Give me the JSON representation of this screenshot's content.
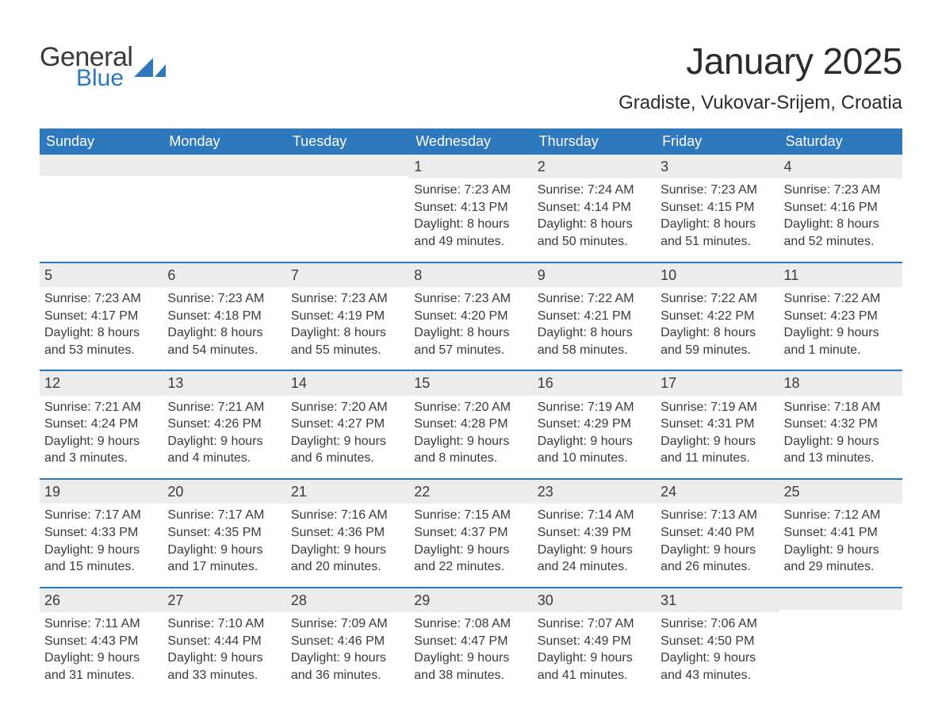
{
  "logo": {
    "word1": "General",
    "word2": "Blue"
  },
  "title": "January 2025",
  "location": "Gradiste, Vukovar-Srijem, Croatia",
  "colors": {
    "header_bg": "#2e78bd",
    "header_text": "#ffffff",
    "daynum_bg": "#ececec",
    "text": "#3a3a3a",
    "page_bg": "#ffffff",
    "logo_accent": "#2e78bd"
  },
  "typography": {
    "title_fontsize": 46,
    "location_fontsize": 24,
    "dayheader_fontsize": 18,
    "daynum_fontsize": 18,
    "body_fontsize": 16
  },
  "layout": {
    "columns": 7,
    "rows": 5,
    "week_border_color": "#2e78bd",
    "week_border_width": 2
  },
  "day_names": [
    "Sunday",
    "Monday",
    "Tuesday",
    "Wednesday",
    "Thursday",
    "Friday",
    "Saturday"
  ],
  "weeks": [
    [
      {
        "empty": true
      },
      {
        "empty": true
      },
      {
        "empty": true
      },
      {
        "num": "1",
        "sunrise": "Sunrise: 7:23 AM",
        "sunset": "Sunset: 4:13 PM",
        "daylight": "Daylight: 8 hours and 49 minutes."
      },
      {
        "num": "2",
        "sunrise": "Sunrise: 7:24 AM",
        "sunset": "Sunset: 4:14 PM",
        "daylight": "Daylight: 8 hours and 50 minutes."
      },
      {
        "num": "3",
        "sunrise": "Sunrise: 7:23 AM",
        "sunset": "Sunset: 4:15 PM",
        "daylight": "Daylight: 8 hours and 51 minutes."
      },
      {
        "num": "4",
        "sunrise": "Sunrise: 7:23 AM",
        "sunset": "Sunset: 4:16 PM",
        "daylight": "Daylight: 8 hours and 52 minutes."
      }
    ],
    [
      {
        "num": "5",
        "sunrise": "Sunrise: 7:23 AM",
        "sunset": "Sunset: 4:17 PM",
        "daylight": "Daylight: 8 hours and 53 minutes."
      },
      {
        "num": "6",
        "sunrise": "Sunrise: 7:23 AM",
        "sunset": "Sunset: 4:18 PM",
        "daylight": "Daylight: 8 hours and 54 minutes."
      },
      {
        "num": "7",
        "sunrise": "Sunrise: 7:23 AM",
        "sunset": "Sunset: 4:19 PM",
        "daylight": "Daylight: 8 hours and 55 minutes."
      },
      {
        "num": "8",
        "sunrise": "Sunrise: 7:23 AM",
        "sunset": "Sunset: 4:20 PM",
        "daylight": "Daylight: 8 hours and 57 minutes."
      },
      {
        "num": "9",
        "sunrise": "Sunrise: 7:22 AM",
        "sunset": "Sunset: 4:21 PM",
        "daylight": "Daylight: 8 hours and 58 minutes."
      },
      {
        "num": "10",
        "sunrise": "Sunrise: 7:22 AM",
        "sunset": "Sunset: 4:22 PM",
        "daylight": "Daylight: 8 hours and 59 minutes."
      },
      {
        "num": "11",
        "sunrise": "Sunrise: 7:22 AM",
        "sunset": "Sunset: 4:23 PM",
        "daylight": "Daylight: 9 hours and 1 minute."
      }
    ],
    [
      {
        "num": "12",
        "sunrise": "Sunrise: 7:21 AM",
        "sunset": "Sunset: 4:24 PM",
        "daylight": "Daylight: 9 hours and 3 minutes."
      },
      {
        "num": "13",
        "sunrise": "Sunrise: 7:21 AM",
        "sunset": "Sunset: 4:26 PM",
        "daylight": "Daylight: 9 hours and 4 minutes."
      },
      {
        "num": "14",
        "sunrise": "Sunrise: 7:20 AM",
        "sunset": "Sunset: 4:27 PM",
        "daylight": "Daylight: 9 hours and 6 minutes."
      },
      {
        "num": "15",
        "sunrise": "Sunrise: 7:20 AM",
        "sunset": "Sunset: 4:28 PM",
        "daylight": "Daylight: 9 hours and 8 minutes."
      },
      {
        "num": "16",
        "sunrise": "Sunrise: 7:19 AM",
        "sunset": "Sunset: 4:29 PM",
        "daylight": "Daylight: 9 hours and 10 minutes."
      },
      {
        "num": "17",
        "sunrise": "Sunrise: 7:19 AM",
        "sunset": "Sunset: 4:31 PM",
        "daylight": "Daylight: 9 hours and 11 minutes."
      },
      {
        "num": "18",
        "sunrise": "Sunrise: 7:18 AM",
        "sunset": "Sunset: 4:32 PM",
        "daylight": "Daylight: 9 hours and 13 minutes."
      }
    ],
    [
      {
        "num": "19",
        "sunrise": "Sunrise: 7:17 AM",
        "sunset": "Sunset: 4:33 PM",
        "daylight": "Daylight: 9 hours and 15 minutes."
      },
      {
        "num": "20",
        "sunrise": "Sunrise: 7:17 AM",
        "sunset": "Sunset: 4:35 PM",
        "daylight": "Daylight: 9 hours and 17 minutes."
      },
      {
        "num": "21",
        "sunrise": "Sunrise: 7:16 AM",
        "sunset": "Sunset: 4:36 PM",
        "daylight": "Daylight: 9 hours and 20 minutes."
      },
      {
        "num": "22",
        "sunrise": "Sunrise: 7:15 AM",
        "sunset": "Sunset: 4:37 PM",
        "daylight": "Daylight: 9 hours and 22 minutes."
      },
      {
        "num": "23",
        "sunrise": "Sunrise: 7:14 AM",
        "sunset": "Sunset: 4:39 PM",
        "daylight": "Daylight: 9 hours and 24 minutes."
      },
      {
        "num": "24",
        "sunrise": "Sunrise: 7:13 AM",
        "sunset": "Sunset: 4:40 PM",
        "daylight": "Daylight: 9 hours and 26 minutes."
      },
      {
        "num": "25",
        "sunrise": "Sunrise: 7:12 AM",
        "sunset": "Sunset: 4:41 PM",
        "daylight": "Daylight: 9 hours and 29 minutes."
      }
    ],
    [
      {
        "num": "26",
        "sunrise": "Sunrise: 7:11 AM",
        "sunset": "Sunset: 4:43 PM",
        "daylight": "Daylight: 9 hours and 31 minutes."
      },
      {
        "num": "27",
        "sunrise": "Sunrise: 7:10 AM",
        "sunset": "Sunset: 4:44 PM",
        "daylight": "Daylight: 9 hours and 33 minutes."
      },
      {
        "num": "28",
        "sunrise": "Sunrise: 7:09 AM",
        "sunset": "Sunset: 4:46 PM",
        "daylight": "Daylight: 9 hours and 36 minutes."
      },
      {
        "num": "29",
        "sunrise": "Sunrise: 7:08 AM",
        "sunset": "Sunset: 4:47 PM",
        "daylight": "Daylight: 9 hours and 38 minutes."
      },
      {
        "num": "30",
        "sunrise": "Sunrise: 7:07 AM",
        "sunset": "Sunset: 4:49 PM",
        "daylight": "Daylight: 9 hours and 41 minutes."
      },
      {
        "num": "31",
        "sunrise": "Sunrise: 7:06 AM",
        "sunset": "Sunset: 4:50 PM",
        "daylight": "Daylight: 9 hours and 43 minutes."
      },
      {
        "empty": true
      }
    ]
  ]
}
